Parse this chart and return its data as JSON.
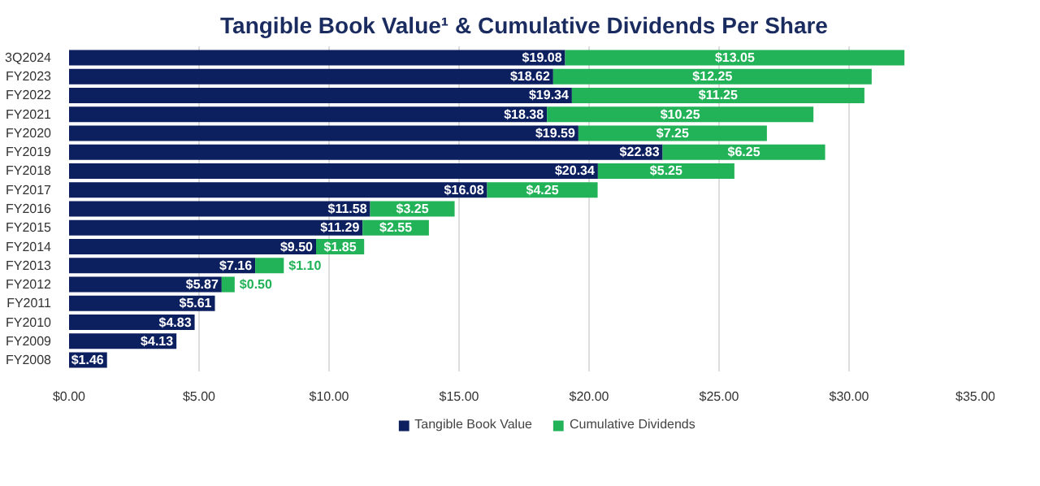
{
  "chart_data": {
    "type": "bar",
    "orientation": "horizontal",
    "stacked": true,
    "title": "Tangible Book Value¹ & Cumulative Dividends Per Share",
    "categories": [
      "3Q2024",
      "FY2023",
      "FY2022",
      "FY2021",
      "FY2020",
      "FY2019",
      "FY2018",
      "FY2017",
      "FY2016",
      "FY2015",
      "FY2014",
      "FY2013",
      "FY2012",
      "FY2011",
      "FY2010",
      "FY2009",
      "FY2008"
    ],
    "series": [
      {
        "name": "Tangible Book Value",
        "color": "#0c1f5e",
        "values": [
          19.08,
          18.62,
          19.34,
          18.38,
          19.59,
          22.83,
          20.34,
          16.08,
          11.58,
          11.29,
          9.5,
          7.16,
          5.87,
          5.61,
          4.83,
          4.13,
          1.46
        ],
        "value_labels": [
          "$19.08",
          "$18.62",
          "$19.34",
          "$18.38",
          "$19.59",
          "$22.83",
          "$20.34",
          "$16.08",
          "$11.58",
          "$11.29",
          "$9.50",
          "$7.16",
          "$5.87",
          "$5.61",
          "$4.83",
          "$4.13",
          "$1.46"
        ]
      },
      {
        "name": "Cumulative Dividends",
        "color": "#22b257",
        "values": [
          13.05,
          12.25,
          11.25,
          10.25,
          7.25,
          6.25,
          5.25,
          4.25,
          3.25,
          2.55,
          1.85,
          1.1,
          0.5,
          null,
          null,
          null,
          null
        ],
        "value_labels": [
          "$13.05",
          "$12.25",
          "$11.25",
          "$10.25",
          "$7.25",
          "$6.25",
          "$5.25",
          "$4.25",
          "$3.25",
          "$2.55",
          "$1.85",
          "$1.10",
          "$0.50",
          null,
          null,
          null,
          null
        ]
      }
    ],
    "xlim": [
      0,
      35
    ],
    "xticks": [
      {
        "value": 0,
        "label": "$0.00"
      },
      {
        "value": 5,
        "label": "$5.00"
      },
      {
        "value": 10,
        "label": "$10.00"
      },
      {
        "value": 15,
        "label": "$15.00"
      },
      {
        "value": 20,
        "label": "$20.00"
      },
      {
        "value": 25,
        "label": "$25.00"
      },
      {
        "value": 30,
        "label": "$30.00"
      },
      {
        "value": 35,
        "label": "$35.00"
      }
    ],
    "grid": "x",
    "legend": "bottom"
  }
}
